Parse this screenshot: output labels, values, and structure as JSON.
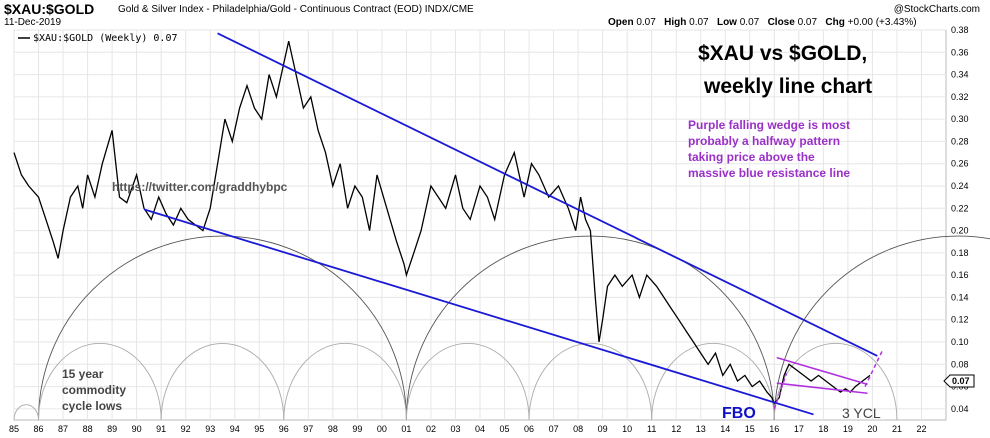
{
  "header": {
    "symbol": "$XAU:$GOLD",
    "description": "Gold & Silver Index - Philadelphia/Gold - Continuous Contract (EOD)  INDX/CME",
    "date": "11-Dec-2019",
    "open_label": "Open",
    "open": "0.07",
    "high_label": "High",
    "high": "0.07",
    "low_label": "Low",
    "low": "0.07",
    "close_label": "Close",
    "close": "0.07",
    "chg_label": "Chg",
    "chg": "+0.00 (+3.43%)",
    "brand": "@StockCharts.com"
  },
  "legend": "$XAU:$GOLD (Weekly) 0.07",
  "last_value_tag": "0.07",
  "annotations": {
    "title_line1": "$XAU vs $GOLD,",
    "title_line2": "weekly line chart",
    "wedge_note": [
      "Purple falling wedge is most",
      "probably a halfway pattern",
      "taking price above the",
      "massive blue resistance line"
    ],
    "twitter": "https://twitter.com/graddhybpc",
    "cycle_note": [
      "15 year",
      "commodity",
      "cycle lows"
    ],
    "fbo": "FBO",
    "ycl": "3 YCL"
  },
  "colors": {
    "price": "#000000",
    "trendline": "#1a1ad6",
    "wedge": "#b030e0",
    "cycle_arc": "#555555",
    "cycle_arc_small": "#aaaaaa",
    "grid": "#e6e6e6"
  },
  "chart_data": {
    "type": "line",
    "title": "$XAU:$GOLD (Weekly)",
    "xlabel": "",
    "ylabel": "",
    "ylim": [
      0.03,
      0.38
    ],
    "xlim": [
      1985.0,
      2023.0
    ],
    "grid": true,
    "legend_position": "top-left",
    "y_ticks": [
      0.04,
      0.06,
      0.08,
      0.1,
      0.12,
      0.14,
      0.16,
      0.18,
      0.2,
      0.22,
      0.24,
      0.26,
      0.28,
      0.3,
      0.32,
      0.34,
      0.36,
      0.38
    ],
    "y_tick_labels": [
      "0.04",
      "0.06",
      "0.08",
      "0.10",
      "0.12",
      "0.14",
      "0.16",
      "0.18",
      "0.20",
      "0.22",
      "0.24",
      "0.26",
      "0.28",
      "0.30",
      "0.32",
      "0.34",
      "0.36",
      "0.38"
    ],
    "x_ticks": [
      1985,
      1986,
      1987,
      1988,
      1989,
      1990,
      1991,
      1992,
      1993,
      1994,
      1995,
      1996,
      1997,
      1998,
      1999,
      2000,
      2001,
      2002,
      2003,
      2004,
      2005,
      2006,
      2007,
      2008,
      2009,
      2010,
      2011,
      2012,
      2013,
      2014,
      2015,
      2016,
      2017,
      2018,
      2019,
      2020,
      2021,
      2022
    ],
    "x_tick_labels": [
      "85",
      "86",
      "87",
      "88",
      "89",
      "90",
      "91",
      "92",
      "93",
      "94",
      "95",
      "96",
      "97",
      "98",
      "99",
      "00",
      "01",
      "02",
      "03",
      "04",
      "05",
      "06",
      "07",
      "08",
      "09",
      "10",
      "11",
      "12",
      "13",
      "14",
      "15",
      "16",
      "17",
      "18",
      "19",
      "20",
      "21",
      "22"
    ],
    "series": [
      {
        "name": "$XAU:$GOLD (Weekly)",
        "x": [
          1985.0,
          1985.3,
          1985.6,
          1986.0,
          1986.3,
          1986.6,
          1986.8,
          1987.0,
          1987.3,
          1987.6,
          1987.8,
          1988.0,
          1988.3,
          1988.6,
          1989.0,
          1989.3,
          1989.6,
          1990.0,
          1990.3,
          1990.6,
          1990.9,
          1991.2,
          1991.5,
          1991.8,
          1992.1,
          1992.4,
          1992.7,
          1993.0,
          1993.3,
          1993.6,
          1993.9,
          1994.2,
          1994.5,
          1994.8,
          1995.1,
          1995.4,
          1995.7,
          1996.0,
          1996.2,
          1996.5,
          1996.8,
          1997.1,
          1997.4,
          1997.7,
          1998.0,
          1998.3,
          1998.6,
          1998.9,
          1999.2,
          1999.5,
          1999.8,
          2000.2,
          2000.6,
          2000.9,
          2001.0,
          2001.3,
          2001.6,
          2002.0,
          2002.3,
          2002.6,
          2003.0,
          2003.3,
          2003.6,
          2004.0,
          2004.3,
          2004.6,
          2005.0,
          2005.4,
          2005.8,
          2006.1,
          2006.4,
          2006.8,
          2007.2,
          2007.6,
          2007.9,
          2008.1,
          2008.3,
          2008.5,
          2008.7,
          2008.85,
          2009.0,
          2009.2,
          2009.5,
          2009.8,
          2010.2,
          2010.5,
          2010.8,
          2011.2,
          2011.5,
          2011.8,
          2012.1,
          2012.4,
          2012.7,
          2013.0,
          2013.3,
          2013.6,
          2013.9,
          2014.2,
          2014.5,
          2014.8,
          2015.1,
          2015.4,
          2015.7,
          2015.9,
          2016.0,
          2016.2,
          2016.4,
          2016.6,
          2016.9,
          2017.2,
          2017.5,
          2017.8,
          2018.1,
          2018.4,
          2018.7,
          2018.9,
          2019.1,
          2019.3,
          2019.6,
          2019.9
        ],
        "y": [
          0.27,
          0.25,
          0.24,
          0.23,
          0.21,
          0.19,
          0.175,
          0.2,
          0.23,
          0.24,
          0.22,
          0.25,
          0.23,
          0.26,
          0.29,
          0.23,
          0.225,
          0.25,
          0.22,
          0.21,
          0.23,
          0.215,
          0.205,
          0.22,
          0.21,
          0.205,
          0.2,
          0.22,
          0.26,
          0.3,
          0.28,
          0.31,
          0.33,
          0.31,
          0.3,
          0.34,
          0.32,
          0.35,
          0.37,
          0.34,
          0.31,
          0.32,
          0.29,
          0.27,
          0.24,
          0.26,
          0.22,
          0.24,
          0.23,
          0.2,
          0.25,
          0.22,
          0.19,
          0.17,
          0.16,
          0.18,
          0.2,
          0.24,
          0.23,
          0.22,
          0.25,
          0.22,
          0.21,
          0.24,
          0.23,
          0.21,
          0.25,
          0.27,
          0.23,
          0.26,
          0.25,
          0.23,
          0.24,
          0.22,
          0.2,
          0.23,
          0.21,
          0.2,
          0.14,
          0.1,
          0.12,
          0.15,
          0.16,
          0.15,
          0.16,
          0.14,
          0.16,
          0.15,
          0.14,
          0.13,
          0.12,
          0.11,
          0.1,
          0.09,
          0.08,
          0.09,
          0.07,
          0.08,
          0.065,
          0.07,
          0.06,
          0.065,
          0.055,
          0.05,
          0.045,
          0.05,
          0.07,
          0.08,
          0.075,
          0.07,
          0.065,
          0.07,
          0.065,
          0.06,
          0.055,
          0.058,
          0.055,
          0.06,
          0.065,
          0.07
        ]
      }
    ]
  }
}
